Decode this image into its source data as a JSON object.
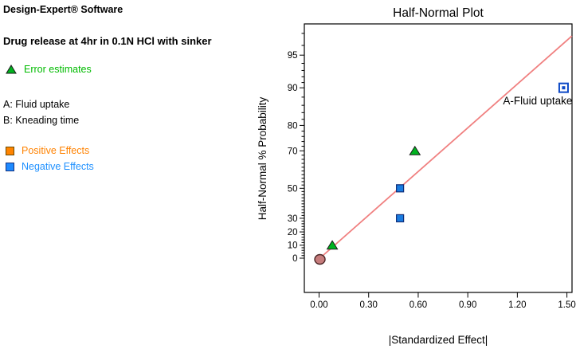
{
  "header": {
    "software": "Design-Expert® Software",
    "response": "Drug release at 4hr in 0.1N HCl with sinker"
  },
  "info_panel": {
    "error_legend": {
      "label": "Error estimates",
      "text_color": "#00bb00",
      "marker": {
        "shape": "triangle",
        "fill": "#00b31f",
        "stroke": "#1a1a1a"
      }
    },
    "factors": [
      {
        "label": "A: Fluid uptake"
      },
      {
        "label": "B: Kneading time"
      }
    ],
    "effects_legend": [
      {
        "label": "Positive Effects",
        "text_color": "#ff8200",
        "marker": {
          "shape": "square",
          "fill": "#ff8400",
          "stroke": "#6b4a00"
        }
      },
      {
        "label": "Negative Effects",
        "text_color": "#1e90ff",
        "marker": {
          "shape": "square",
          "fill": "#1e8aff",
          "stroke": "#14317d"
        }
      }
    ]
  },
  "chart_data": {
    "type": "scatter",
    "title": "Half-Normal Plot",
    "xlabel": "|Standardized Effect|",
    "ylabel": "Half-Normal % Probability",
    "x_axis": {
      "range": [
        -0.09,
        1.53
      ],
      "ticks": [
        {
          "v": 0.0,
          "label": "0.00"
        },
        {
          "v": 0.3,
          "label": "0.30"
        },
        {
          "v": 0.6,
          "label": "0.60"
        },
        {
          "v": 0.9,
          "label": "0.90"
        },
        {
          "v": 1.2,
          "label": "1.20"
        },
        {
          "v": 1.5,
          "label": "1.50"
        }
      ]
    },
    "y_axis": {
      "scale": "half-normal-probability",
      "major_ticks": [
        {
          "p": 0,
          "label": "0"
        },
        {
          "p": 10,
          "label": "10"
        },
        {
          "p": 20,
          "label": "20"
        },
        {
          "p": 30,
          "label": "30"
        },
        {
          "p": 50,
          "label": "50"
        },
        {
          "p": 70,
          "label": "70"
        },
        {
          "p": 80,
          "label": "80"
        },
        {
          "p": 90,
          "label": "90"
        },
        {
          "p": 95,
          "label": "95"
        }
      ],
      "minor_ticks": [
        2,
        4,
        6,
        8,
        12,
        14,
        16,
        18,
        22,
        24,
        26,
        28,
        32,
        34,
        36,
        38,
        40,
        42,
        44,
        46,
        48,
        52,
        54,
        56,
        58,
        60,
        62,
        64,
        66,
        68,
        72,
        74,
        76,
        78,
        82,
        84,
        86,
        88,
        91,
        92,
        93,
        94,
        96,
        97
      ]
    },
    "points": [
      {
        "series": "error",
        "marker": "triangle",
        "x": 0.08,
        "p": 10
      },
      {
        "series": "negative",
        "marker": "square",
        "x": 0.49,
        "p": 30
      },
      {
        "series": "negative",
        "marker": "square",
        "x": 0.49,
        "p": 50
      },
      {
        "series": "error",
        "marker": "triangle",
        "x": 0.58,
        "p": 70
      },
      {
        "series": "negative",
        "marker": "square-open",
        "x": 1.48,
        "p": 90,
        "label": "A-Fluid uptake"
      },
      {
        "series": "baseline",
        "marker": "circle",
        "x": 0.005,
        "p": 0
      }
    ],
    "fit_line": {
      "x1": 0.005,
      "p1": 0,
      "x2": 1.53,
      "p2": 96.8,
      "color": "#f08080"
    },
    "series_styles": {
      "error": {
        "fill": "#00b31f",
        "stroke": "#1a1a1a"
      },
      "negative": {
        "fill": "#1a7ce0",
        "stroke": "#0f2d78"
      },
      "square_open": {
        "fill": "#ffffff",
        "stroke": "#0d49c6"
      },
      "baseline": {
        "fill": "#c67c7c",
        "stroke": "#4a2525"
      }
    }
  }
}
